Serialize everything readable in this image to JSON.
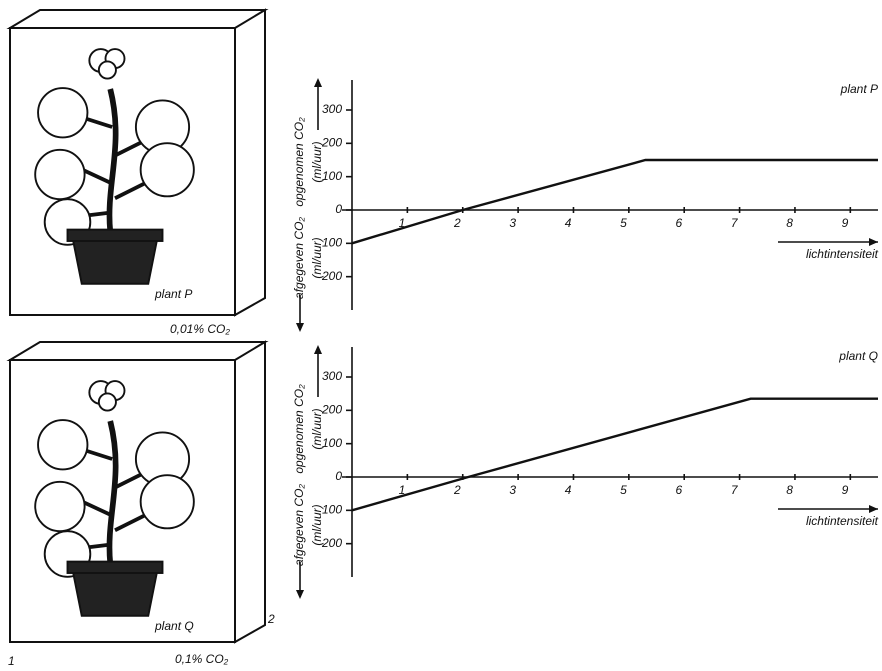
{
  "figure": {
    "panels": [
      {
        "label": "plant P",
        "condition": "0,01% CO₂"
      },
      {
        "label": "plant Q",
        "condition": "0,1% CO₂"
      }
    ],
    "number_left": "1",
    "number_right": "2"
  },
  "chart_data": [
    {
      "type": "line",
      "title": "plant P",
      "y_label_up": "opgenomen CO₂",
      "y_label_down": "afgegeven CO₂",
      "y_unit_up": "(ml/uur)",
      "y_unit_down": "(ml/uur)",
      "x_label": "lichtintensiteit",
      "x": [
        0,
        2,
        5.3,
        9.5
      ],
      "values": [
        -100,
        0,
        150,
        150
      ],
      "color": "#111",
      "xlim": [
        0,
        9.5
      ],
      "xticks": [
        1,
        2,
        3,
        4,
        5,
        6,
        7,
        8,
        9
      ],
      "ylim": [
        -300,
        390
      ],
      "yticks": [
        300,
        200,
        100,
        0,
        {
          "value": -100,
          "label": "100"
        },
        {
          "value": -200,
          "label": "200"
        }
      ]
    },
    {
      "type": "line",
      "title": "plant Q",
      "y_label_up": "opgenomen CO₂",
      "y_label_down": "afgegeven CO₂",
      "y_unit_up": "(ml/uur)",
      "y_unit_down": "(ml/uur)",
      "x_label": "lichtintensiteit",
      "x": [
        0,
        2.1,
        7.2,
        9.5
      ],
      "values": [
        -100,
        0,
        235,
        235
      ],
      "color": "#111",
      "xlim": [
        0,
        9.5
      ],
      "xticks": [
        1,
        2,
        3,
        4,
        5,
        6,
        7,
        8,
        9
      ],
      "ylim": [
        -300,
        390
      ],
      "yticks": [
        300,
        200,
        100,
        0,
        {
          "value": -100,
          "label": "100"
        },
        {
          "value": -200,
          "label": "200"
        }
      ]
    }
  ]
}
